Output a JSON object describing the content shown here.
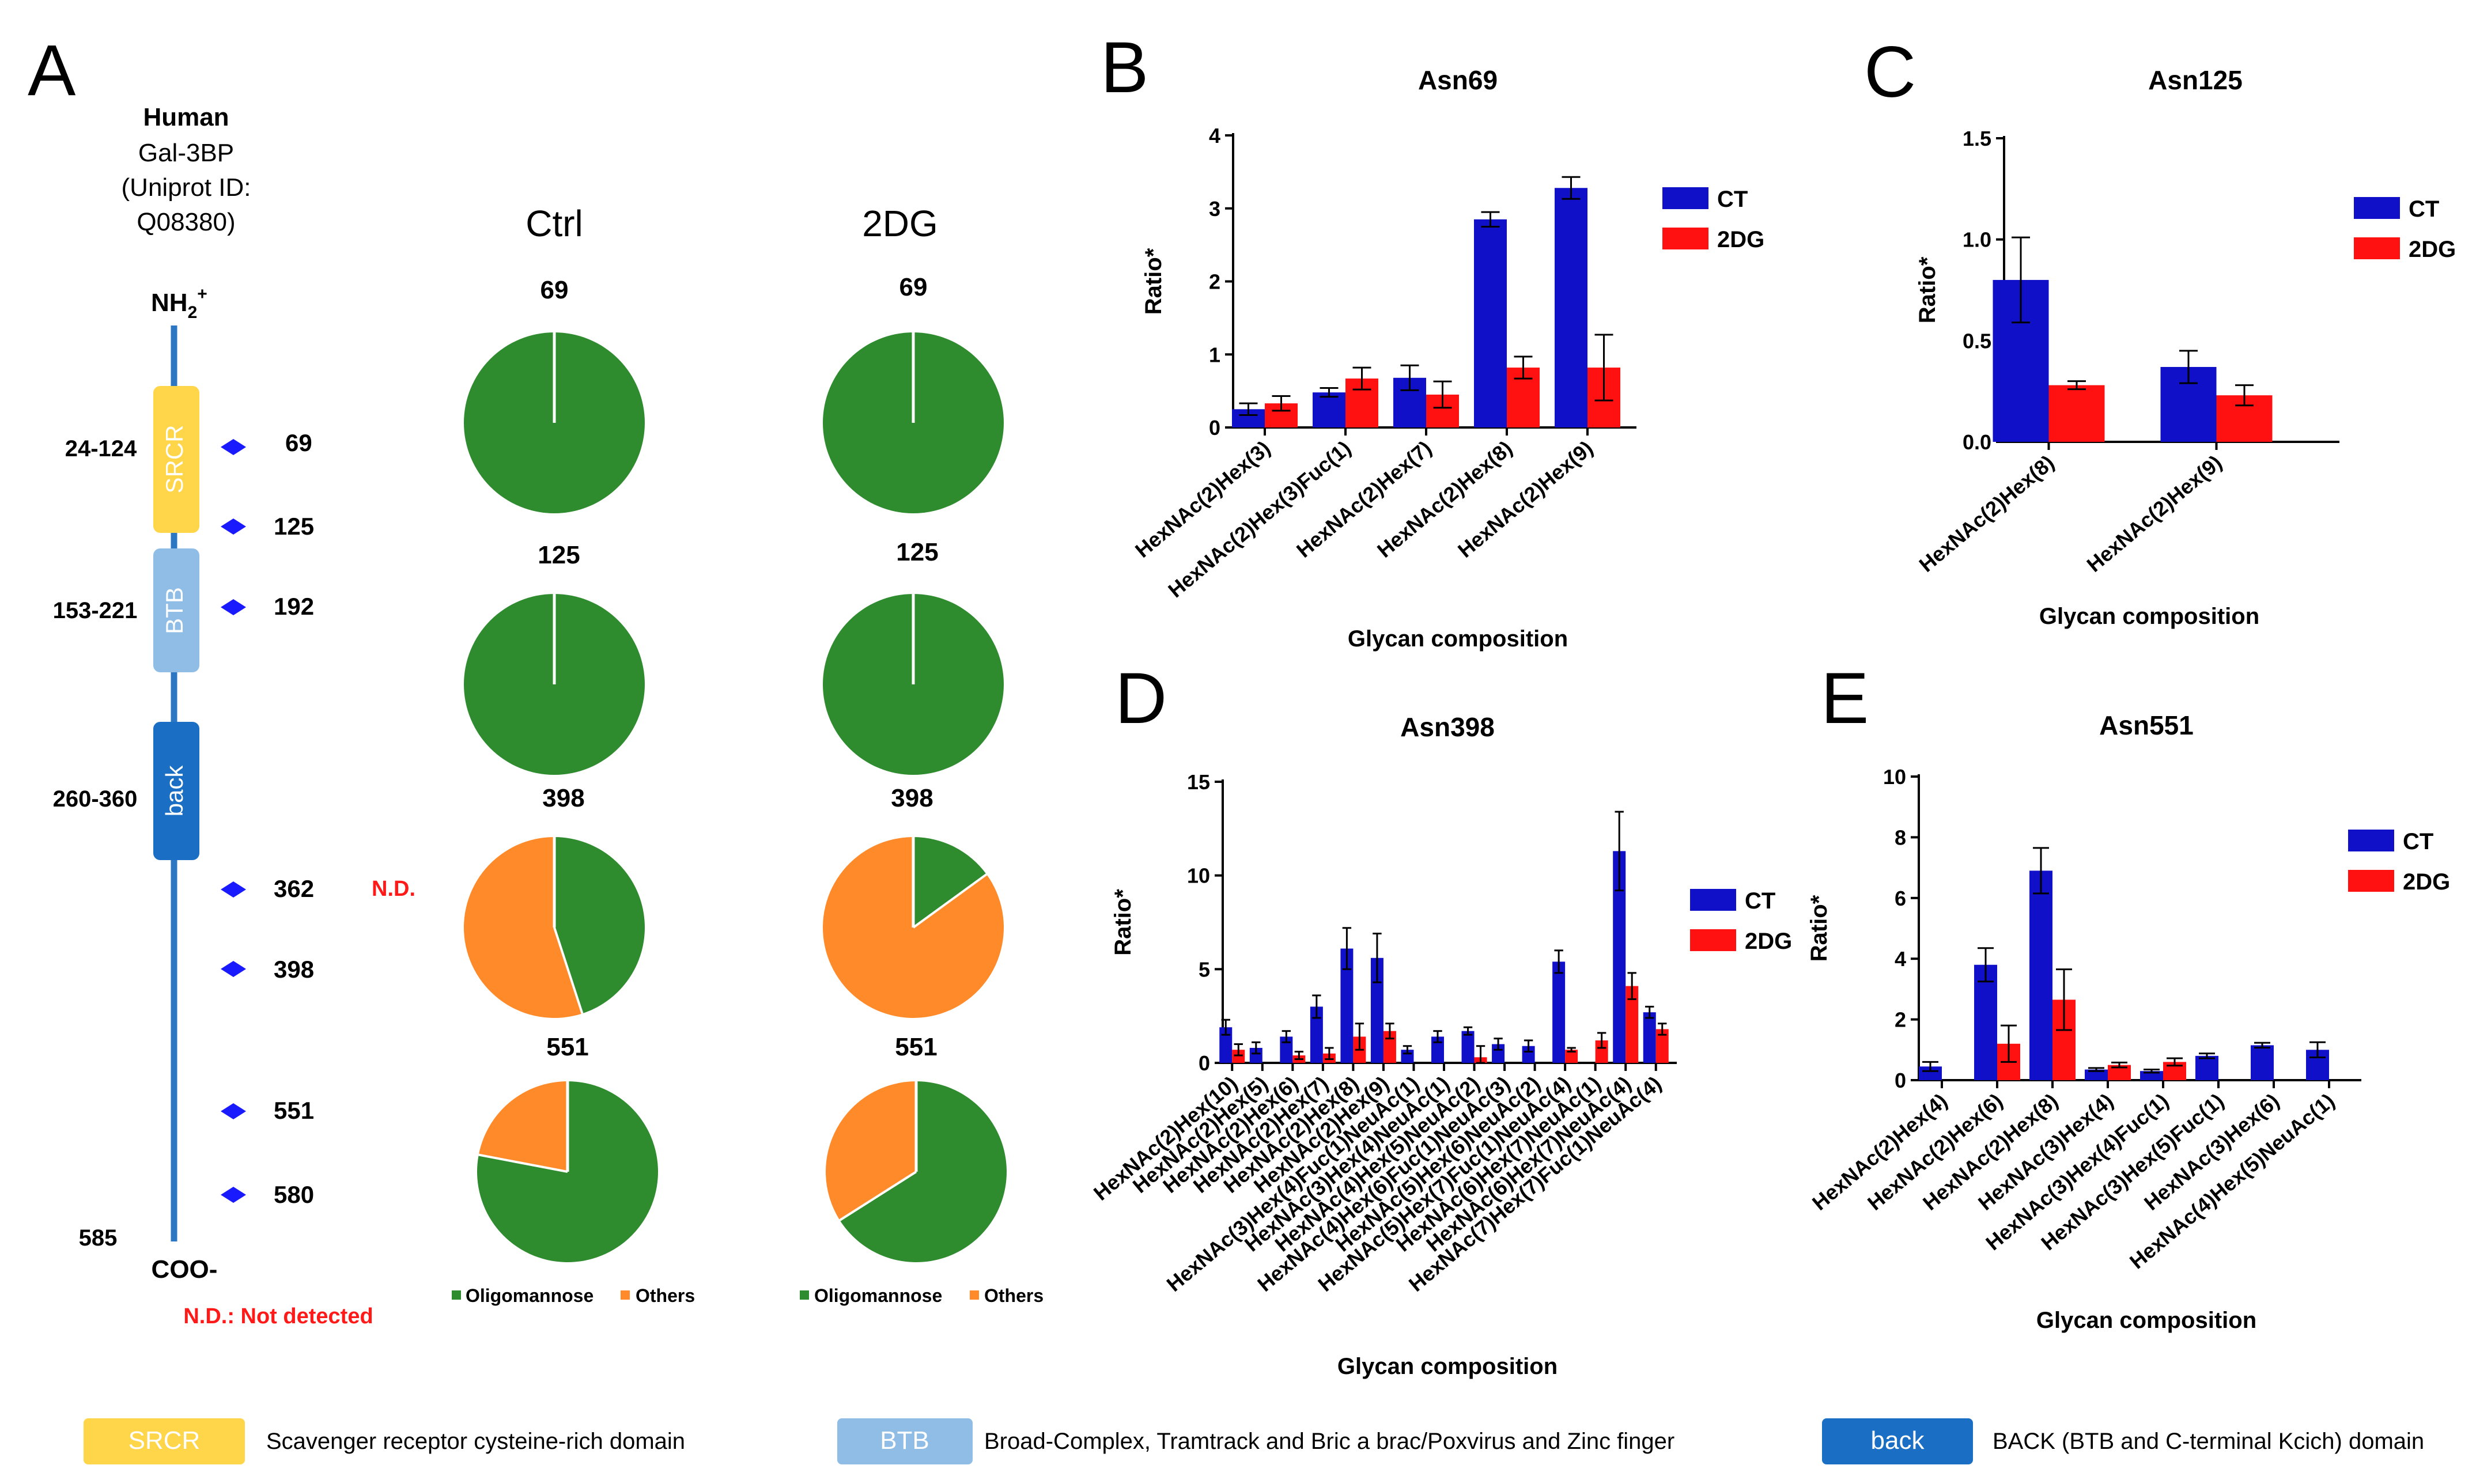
{
  "colors": {
    "ct": "#1010c8",
    "dg": "#ff1111",
    "oligo": "#2e8b2e",
    "others": "#ff8a2a",
    "spine": "#2b77c4",
    "srcr": "#ffd54a",
    "btb": "#8fbde6",
    "back": "#1a6fc4",
    "site": "#1a1aff",
    "nd": "#ff1a1a"
  },
  "panelA": {
    "letter": "A",
    "protein": {
      "species": "Human",
      "name": "Gal-3BP",
      "id_line1": "(Uniprot ID:",
      "id_line2": "Q08380)"
    },
    "nterm": "NH",
    "nterm_sub": "2",
    "nterm_sup": "+",
    "cterm": "COO-",
    "domains": [
      {
        "name": "SRCR",
        "range": "24-124"
      },
      {
        "name": "BTB",
        "range": "153-221"
      },
      {
        "name": "back",
        "range": "260-360"
      }
    ],
    "end_position": "585",
    "sites": [
      "69",
      "125",
      "192",
      "362",
      "398",
      "551",
      "580"
    ],
    "nd_label": "N.D.",
    "nd_note": "N.D.: Not detected",
    "pie_headers": [
      "Ctrl",
      "2DG"
    ],
    "pie_sites": [
      "69",
      "125",
      "398",
      "551"
    ],
    "pies": {
      "ctrl": [
        {
          "site": "69",
          "oligomannose": 1.0,
          "others": 0.0
        },
        {
          "site": "125",
          "oligomannose": 1.0,
          "others": 0.0
        },
        {
          "site": "398",
          "oligomannose": 0.45,
          "others": 0.55
        },
        {
          "site": "551",
          "oligomannose": 0.78,
          "others": 0.22
        }
      ],
      "dg": [
        {
          "site": "69",
          "oligomannose": 1.0,
          "others": 0.0
        },
        {
          "site": "125",
          "oligomannose": 1.0,
          "others": 0.0
        },
        {
          "site": "398",
          "oligomannose": 0.15,
          "others": 0.85
        },
        {
          "site": "551",
          "oligomannose": 0.66,
          "others": 0.34
        }
      ]
    },
    "pie_legend": [
      "Oligomannose",
      "Others"
    ]
  },
  "bottom_legend": [
    {
      "name": "SRCR",
      "desc": "Scavenger receptor cysteine-rich domain"
    },
    {
      "name": "BTB",
      "desc": "Broad-Complex, Tramtrack and Bric a brac/Poxvirus and Zinc finger"
    },
    {
      "name": "back",
      "desc": "BACK (BTB and C-terminal Kcich) domain"
    }
  ],
  "chart_data": [
    {
      "panel": "B",
      "type": "bar",
      "title": "Asn69",
      "xlabel": "Glycan composition",
      "ylabel": "Ratio*",
      "ylim": [
        0,
        4
      ],
      "yticks": [
        0,
        1,
        2,
        3,
        4
      ],
      "categories": [
        "HexNAc(2)Hex(3)",
        "HexNAc(2)Hex(3)Fuc(1)",
        "HexNAc(2)Hex(7)",
        "HexNAc(2)Hex(8)",
        "HexNAc(2)Hex(9)"
      ],
      "series": [
        {
          "name": "CT",
          "values": [
            0.25,
            0.48,
            0.68,
            2.85,
            3.28
          ],
          "errors": [
            0.08,
            0.06,
            0.17,
            0.1,
            0.15
          ]
        },
        {
          "name": "2DG",
          "values": [
            0.33,
            0.67,
            0.45,
            0.82,
            0.82
          ],
          "errors": [
            0.1,
            0.15,
            0.18,
            0.15,
            0.45
          ]
        }
      ],
      "legend": "right"
    },
    {
      "panel": "C",
      "type": "bar",
      "title": "Asn125",
      "xlabel": "Glycan composition",
      "ylabel": "Ratio*",
      "ylim": [
        0,
        1.5
      ],
      "yticks": [
        0.0,
        0.5,
        1.0,
        1.5
      ],
      "categories": [
        "HexNAc(2)Hex(8)",
        "HexNAc(2)Hex(9)"
      ],
      "series": [
        {
          "name": "CT",
          "values": [
            0.8,
            0.37
          ],
          "errors": [
            0.21,
            0.08
          ]
        },
        {
          "name": "2DG",
          "values": [
            0.28,
            0.23
          ],
          "errors": [
            0.02,
            0.05
          ]
        }
      ],
      "legend": "right"
    },
    {
      "panel": "D",
      "type": "bar",
      "title": "Asn398",
      "xlabel": "Glycan composition",
      "ylabel": "Ratio*",
      "ylim": [
        0,
        15
      ],
      "yticks": [
        0,
        5,
        10,
        15
      ],
      "categories": [
        "HexNAc(2)Hex(10)",
        "HexNAc(2)Hex(5)",
        "HexNAc(2)Hex(6)",
        "HexNAc(2)Hex(7)",
        "HexNAc(2)Hex(8)",
        "HexNAc(2)Hex(9)",
        "HexNAc(3)Hex(4)Fuc(1)NeuAc(1)",
        "HexNAc(3)Hex(4)NeuAc(1)",
        "HexNAc(4)Hex(5)NeuAc(2)",
        "HexNAc(4)Hex(6)Fuc(1)NeuAc(3)",
        "HexNAc(5)Hex(6)NeuAc(2)",
        "HexNAc(5)Hex(7)Fuc(1)NeuAc(4)",
        "HexNAc(6)Hex(7)NeuAc(1)",
        "HexNAc(6)Hex(7)NeuAc(4)",
        "HexNAc(7)Hex(7)Fuc(1)NeuAc(4)"
      ],
      "series": [
        {
          "name": "CT",
          "values": [
            1.9,
            0.8,
            1.4,
            3.0,
            6.1,
            5.6,
            0.7,
            1.4,
            1.7,
            1.0,
            0.9,
            5.4,
            0.0,
            11.3,
            2.7
          ],
          "errors": [
            0.4,
            0.3,
            0.3,
            0.6,
            1.1,
            1.3,
            0.2,
            0.3,
            0.2,
            0.3,
            0.3,
            0.6,
            0.0,
            2.1,
            0.3
          ]
        },
        {
          "name": "2DG",
          "values": [
            0.7,
            0.0,
            0.4,
            0.5,
            1.4,
            1.7,
            0.0,
            0.0,
            0.3,
            0.0,
            0.0,
            0.7,
            1.2,
            4.1,
            1.8
          ],
          "errors": [
            0.3,
            0.0,
            0.2,
            0.3,
            0.7,
            0.4,
            0.0,
            0.0,
            0.6,
            0.0,
            0.0,
            0.1,
            0.4,
            0.7,
            0.3
          ]
        }
      ],
      "legend": "right"
    },
    {
      "panel": "E",
      "type": "bar",
      "title": "Asn551",
      "xlabel": "Glycan composition",
      "ylabel": "Ratio*",
      "ylim": [
        0,
        10
      ],
      "yticks": [
        0,
        2,
        4,
        6,
        8,
        10
      ],
      "categories": [
        "HexNAc(2)Hex(4)",
        "HexNAc(2)Hex(6)",
        "HexNAc(2)Hex(8)",
        "HexNAc(3)Hex(4)",
        "HexNAc(3)Hex(4)Fuc(1)",
        "HexNAc(3)Hex(5)Fuc(1)",
        "HexNAc(3)Hex(6)",
        "HexNAc(4)Hex(5)NeuAc(1)"
      ],
      "series": [
        {
          "name": "CT",
          "values": [
            0.45,
            3.8,
            6.9,
            0.35,
            0.3,
            0.8,
            1.15,
            1.0
          ],
          "errors": [
            0.15,
            0.55,
            0.75,
            0.05,
            0.05,
            0.08,
            0.08,
            0.25
          ]
        },
        {
          "name": "2DG",
          "values": [
            0.0,
            1.2,
            2.65,
            0.5,
            0.6,
            0.0,
            0.0,
            0.0
          ],
          "errors": [
            0.0,
            0.6,
            1.0,
            0.08,
            0.12,
            0.0,
            0.0,
            0.0
          ]
        }
      ],
      "legend": "right"
    }
  ]
}
